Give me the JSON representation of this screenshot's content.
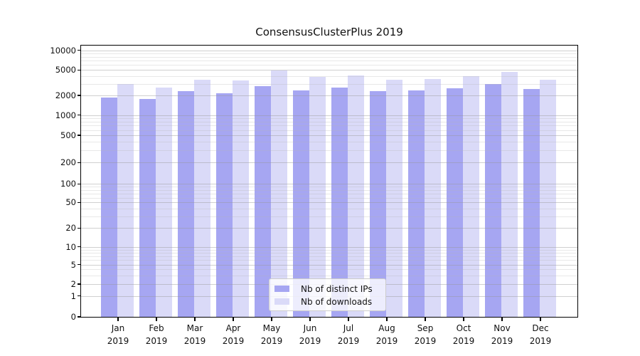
{
  "title": "ConsensusClusterPlus 2019",
  "colors": {
    "distinct_ips": "#a6a6f2",
    "downloads": "#dadaf8",
    "grid_major": "#d6d6d6",
    "grid_minor": "#e9e9e9",
    "axis": "#000000",
    "legend_border": "#cccccc"
  },
  "legend": {
    "items": [
      {
        "label": "Nb of distinct IPs",
        "series": "distinct_ips"
      },
      {
        "label": "Nb of downloads",
        "series": "downloads"
      }
    ]
  },
  "chart_data": {
    "type": "bar",
    "title": "ConsensusClusterPlus 2019",
    "categories": [
      "Jan",
      "Feb",
      "Mar",
      "Apr",
      "May",
      "Jun",
      "Jul",
      "Aug",
      "Sep",
      "Oct",
      "Nov",
      "Dec"
    ],
    "year": "2019",
    "series": [
      {
        "name": "Nb of distinct IPs",
        "color_key": "distinct_ips",
        "values": [
          1850,
          1750,
          2350,
          2150,
          2800,
          2400,
          2650,
          2350,
          2400,
          2600,
          3050,
          2500
        ]
      },
      {
        "name": "Nb of downloads",
        "color_key": "downloads",
        "values": [
          3050,
          2650,
          3500,
          3400,
          4950,
          3950,
          4100,
          3550,
          3600,
          4050,
          4700,
          3500
        ]
      }
    ],
    "xlabel": "",
    "ylabel": "",
    "legend_position": "lower center",
    "grid": "horizontal",
    "y_axis": {
      "scale": "custom-log",
      "ylim": [
        0,
        12000
      ],
      "ticks": [
        {
          "label": "0",
          "value": 0,
          "pos": 0.0
        },
        {
          "label": "1",
          "value": 1,
          "pos": 0.0769
        },
        {
          "label": "2",
          "value": 2,
          "pos": 0.1207
        },
        {
          "label": "5",
          "value": 5,
          "pos": 0.1924
        },
        {
          "label": "10",
          "value": 10,
          "pos": 0.258
        },
        {
          "label": "20",
          "value": 20,
          "pos": 0.3273
        },
        {
          "label": "50",
          "value": 50,
          "pos": 0.4217
        },
        {
          "label": "100",
          "value": 100,
          "pos": 0.49
        },
        {
          "label": "200",
          "value": 200,
          "pos": 0.5687
        },
        {
          "label": "500",
          "value": 500,
          "pos": 0.6693
        },
        {
          "label": "1000",
          "value": 1000,
          "pos": 0.7435
        },
        {
          "label": "2000",
          "value": 2000,
          "pos": 0.8163
        },
        {
          "label": "5000",
          "value": 5000,
          "pos": 0.91
        },
        {
          "label": "10000",
          "value": 10000,
          "pos": 0.9824
        }
      ],
      "minor_mantissas": [
        3,
        4,
        6,
        7,
        8,
        9
      ],
      "minor_decades": [
        1,
        10,
        100,
        1000
      ]
    }
  }
}
